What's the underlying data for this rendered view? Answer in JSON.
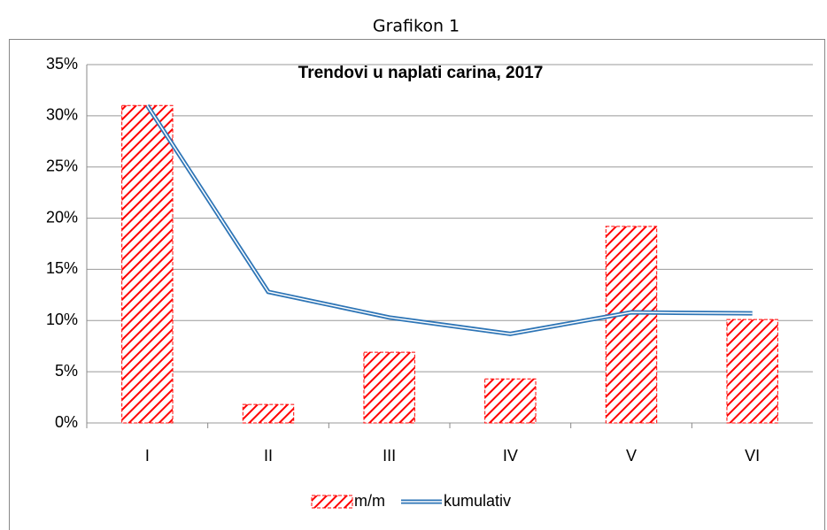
{
  "header": {
    "title": "Grafikon 1"
  },
  "chart_data": {
    "type": "bar_line",
    "title": "Trendovi u naplati carina, 2017",
    "categories": [
      "I",
      "II",
      "III",
      "IV",
      "V",
      "VI"
    ],
    "series": [
      {
        "name": "m/m",
        "type": "bar",
        "color": "#ff0000",
        "values": [
          31,
          1.8,
          6.9,
          4.3,
          19.2,
          10.1
        ]
      },
      {
        "name": "kumulativ",
        "type": "line",
        "color": "#2e75b6",
        "values": [
          31,
          12.8,
          10.3,
          8.7,
          10.8,
          10.7
        ]
      }
    ],
    "ylim": [
      0,
      35
    ],
    "yticks": [
      {
        "value": 0,
        "label": "0%"
      },
      {
        "value": 5,
        "label": "5%"
      },
      {
        "value": 10,
        "label": "10%"
      },
      {
        "value": 15,
        "label": "15%"
      },
      {
        "value": 20,
        "label": "20%"
      },
      {
        "value": 25,
        "label": "25%"
      },
      {
        "value": 30,
        "label": "30%"
      },
      {
        "value": 35,
        "label": "35%"
      }
    ],
    "grid": true,
    "legend": "bottom"
  }
}
